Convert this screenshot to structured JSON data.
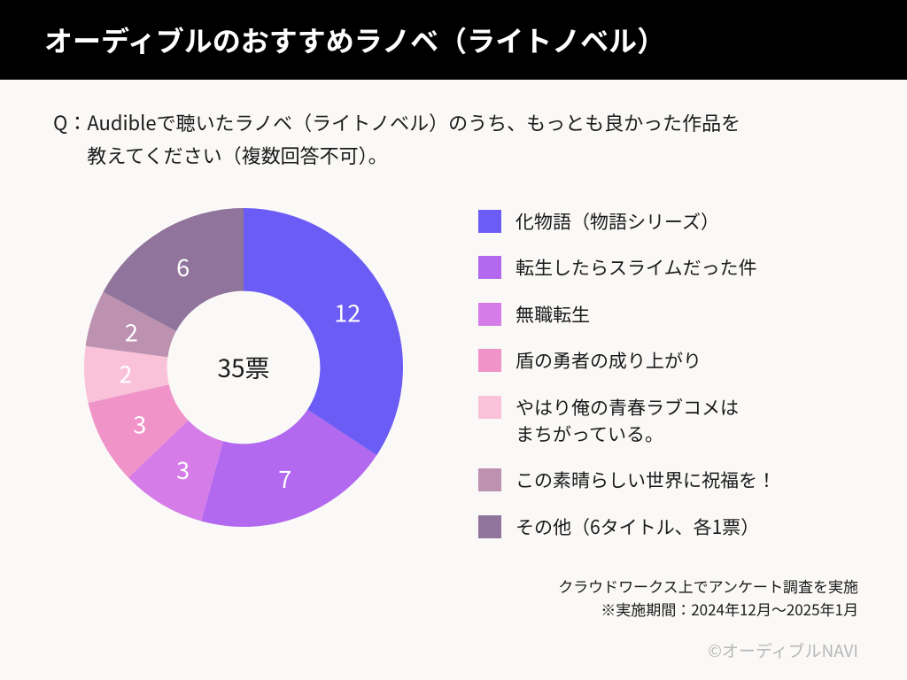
{
  "header": {
    "title": "オーディブルのおすすめラノベ（ライトノベル）"
  },
  "question": {
    "prefix": "Q：",
    "line1": "Audibleで聴いたラノベ（ライトノベル）のうち、もっとも良かった作品を",
    "line2": "教えてください（複数回答不可）。"
  },
  "chart": {
    "type": "donut",
    "total_label": "35票",
    "inner_radius_ratio": 0.48,
    "background_color": "#faf9f7",
    "value_text_color": "#ffffff",
    "value_fontsize": 26,
    "center_fontsize": 28,
    "slices": [
      {
        "label": "化物語（物語シリーズ）",
        "value": 12,
        "color": "#6b5cf5"
      },
      {
        "label": "転生したらスライムだった件",
        "value": 7,
        "color": "#b268ef"
      },
      {
        "label": "無職転生",
        "value": 3,
        "color": "#d57ce8"
      },
      {
        "label": "盾の勇者の成り上がり",
        "value": 3,
        "color": "#f093c8"
      },
      {
        "label": "やはり俺の青春ラブコメは\nまちがっている。",
        "value": 2,
        "color": "#f9c2d9"
      },
      {
        "label": "この素晴らしい世界に祝福を！",
        "value": 2,
        "color": "#bd92b1"
      },
      {
        "label": "その他（6タイトル、各1票）",
        "value": 6,
        "color": "#91749b"
      }
    ]
  },
  "footer": {
    "note1": "クラウドワークス上でアンケート調査を実施",
    "note2": "※実施期間：2024年12月〜2025年1月",
    "credit": "©オーディブルNAVI"
  }
}
